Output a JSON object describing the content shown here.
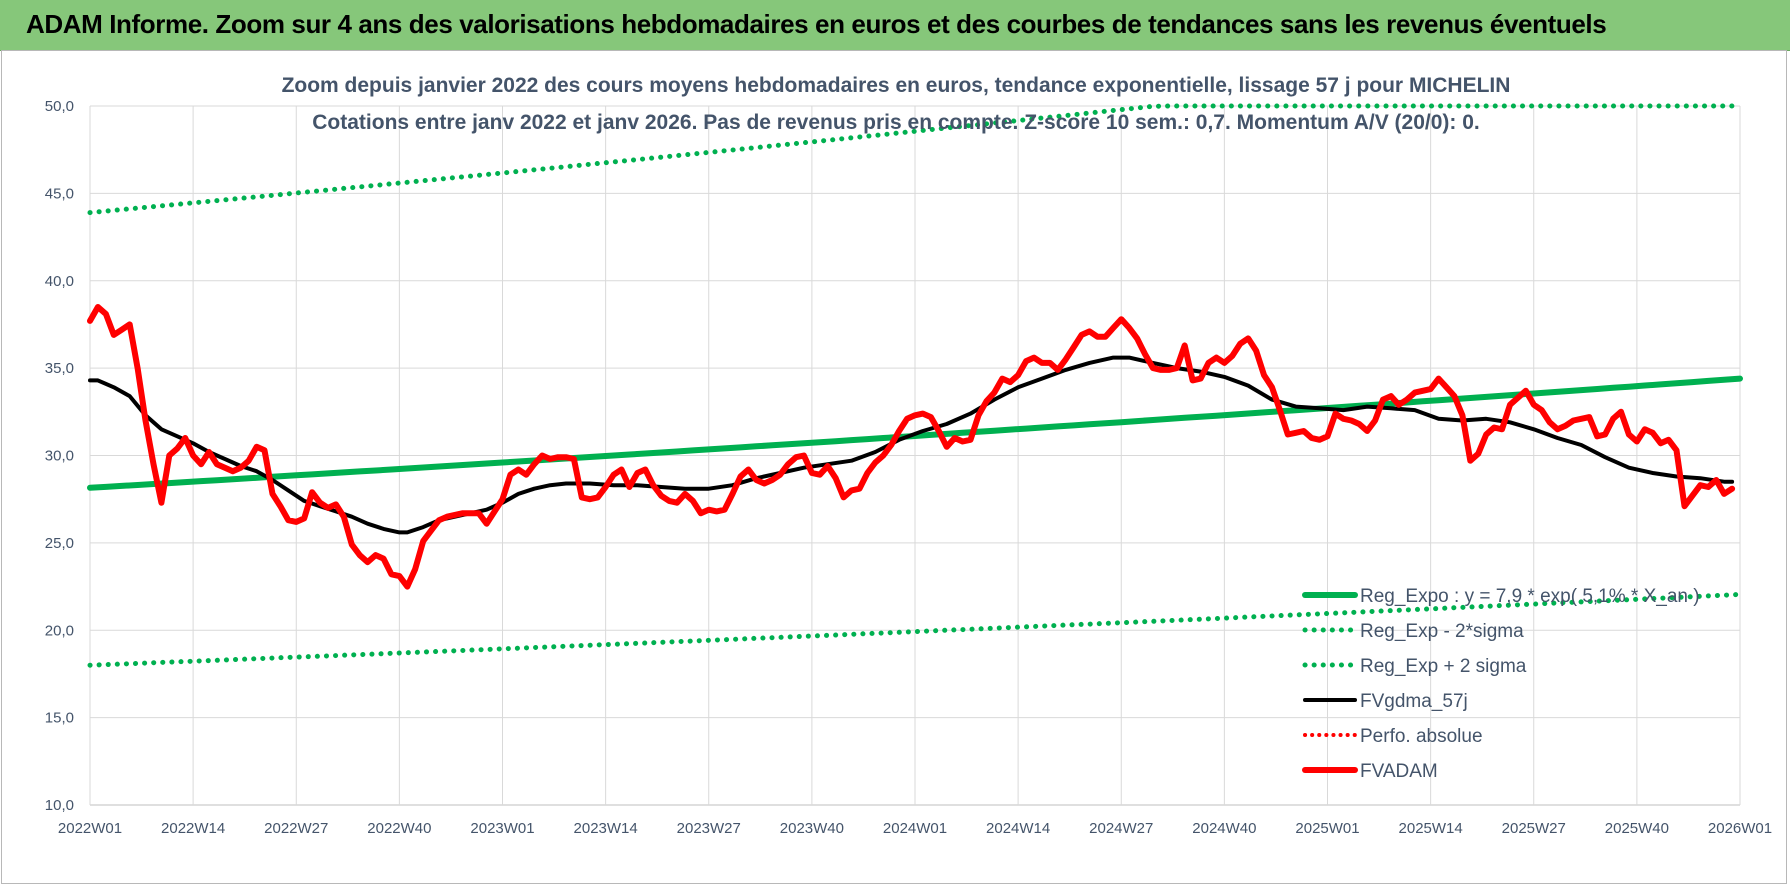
{
  "banner_title": "ADAM Informe. Zoom sur 4 ans des valorisations hebdomadaires en euros et des courbes de tendances sans les revenus éventuels",
  "chart_data": {
    "type": "line",
    "title": "Zoom depuis janvier 2022 des cours moyens hebdomadaires en euros, tendance exponentielle, lissage 57 j pour MICHELIN",
    "subtitle": "Cotations entre janv 2022 et janv 2026. Pas de revenus pris en compte. Z-score 10 sem.: 0,7. Momentum A/V (20/0): 0.",
    "xlabel": "",
    "ylabel": "",
    "ylim": [
      10,
      50
    ],
    "yticks": [
      "10,0",
      "15,0",
      "20,0",
      "25,0",
      "30,0",
      "35,0",
      "40,0",
      "45,0",
      "50,0"
    ],
    "xticks": [
      "2022W01",
      "2022W14",
      "2022W27",
      "2022W40",
      "2023W01",
      "2023W14",
      "2023W27",
      "2023W40",
      "2024W01",
      "2024W14",
      "2024W27",
      "2024W40",
      "2025W01",
      "2025W14",
      "2025W27",
      "2025W40",
      "2026W01"
    ],
    "grid": true,
    "legend_position": "bottom-right",
    "colors": {
      "green": "#00b050",
      "black": "#000000",
      "red": "#ff0000",
      "banner": "#86c77a",
      "text": "#44546a"
    },
    "series": [
      {
        "name": "Reg_Expo : y = 7,9 * exp( 5,1% * X_an )",
        "style": "solid-green",
        "x_range": [
          0,
          208
        ],
        "values": [
          28.15,
          34.4
        ]
      },
      {
        "name": "Reg_Exp - 2*sigma",
        "style": "dotted-green",
        "x_range": [
          0,
          208
        ],
        "values": [
          18.0,
          22.05
        ]
      },
      {
        "name": "Reg_Exp + 2 sigma",
        "style": "dotted-green",
        "x_range": [
          0,
          208
        ],
        "values": [
          43.9,
          53.7
        ]
      },
      {
        "name": "FVgdma_57j",
        "style": "solid-black",
        "points": [
          [
            0,
            34.3
          ],
          [
            1,
            34.3
          ],
          [
            3,
            33.9
          ],
          [
            5,
            33.4
          ],
          [
            7,
            32.3
          ],
          [
            9,
            31.5
          ],
          [
            11,
            31.1
          ],
          [
            13,
            30.7
          ],
          [
            15,
            30.2
          ],
          [
            17,
            29.8
          ],
          [
            19,
            29.4
          ],
          [
            21,
            29.1
          ],
          [
            23,
            28.6
          ],
          [
            25,
            28.0
          ],
          [
            27,
            27.4
          ],
          [
            29,
            27.1
          ],
          [
            31,
            26.8
          ],
          [
            33,
            26.5
          ],
          [
            35,
            26.1
          ],
          [
            37,
            25.8
          ],
          [
            39,
            25.6
          ],
          [
            40,
            25.6
          ],
          [
            42,
            25.9
          ],
          [
            44,
            26.3
          ],
          [
            46,
            26.5
          ],
          [
            48,
            26.7
          ],
          [
            50,
            26.9
          ],
          [
            52,
            27.3
          ],
          [
            54,
            27.8
          ],
          [
            56,
            28.1
          ],
          [
            58,
            28.3
          ],
          [
            60,
            28.4
          ],
          [
            63,
            28.4
          ],
          [
            66,
            28.3
          ],
          [
            69,
            28.3
          ],
          [
            72,
            28.2
          ],
          [
            75,
            28.1
          ],
          [
            78,
            28.1
          ],
          [
            81,
            28.3
          ],
          [
            84,
            28.7
          ],
          [
            87,
            29.0
          ],
          [
            90,
            29.3
          ],
          [
            93,
            29.5
          ],
          [
            96,
            29.7
          ],
          [
            99,
            30.2
          ],
          [
            102,
            30.9
          ],
          [
            105,
            31.4
          ],
          [
            108,
            31.8
          ],
          [
            111,
            32.4
          ],
          [
            114,
            33.2
          ],
          [
            117,
            33.9
          ],
          [
            120,
            34.4
          ],
          [
            123,
            34.9
          ],
          [
            126,
            35.3
          ],
          [
            129,
            35.6
          ],
          [
            131,
            35.6
          ],
          [
            134,
            35.3
          ],
          [
            137,
            35.0
          ],
          [
            140,
            34.8
          ],
          [
            143,
            34.5
          ],
          [
            146,
            34.0
          ],
          [
            149,
            33.2
          ],
          [
            152,
            32.8
          ],
          [
            155,
            32.7
          ],
          [
            158,
            32.6
          ],
          [
            161,
            32.8
          ],
          [
            164,
            32.7
          ],
          [
            167,
            32.6
          ],
          [
            170,
            32.1
          ],
          [
            173,
            32.0
          ],
          [
            176,
            32.1
          ],
          [
            179,
            31.9
          ],
          [
            182,
            31.5
          ],
          [
            185,
            31.0
          ],
          [
            188,
            30.6
          ],
          [
            191,
            29.9
          ],
          [
            194,
            29.3
          ],
          [
            197,
            29.0
          ],
          [
            200,
            28.8
          ],
          [
            203,
            28.7
          ],
          [
            206,
            28.5
          ],
          [
            207,
            28.5
          ]
        ]
      },
      {
        "name": "Perfo. absolue",
        "style": "dotted-red",
        "points": []
      },
      {
        "name": "FVADAM",
        "style": "solid-red",
        "points": [
          [
            0,
            37.7
          ],
          [
            1,
            38.5
          ],
          [
            2,
            38.1
          ],
          [
            3,
            36.9
          ],
          [
            4,
            37.2
          ],
          [
            5,
            37.5
          ],
          [
            6,
            35.0
          ],
          [
            7,
            32.0
          ],
          [
            8,
            29.5
          ],
          [
            9,
            27.3
          ],
          [
            10,
            30.0
          ],
          [
            11,
            30.4
          ],
          [
            12,
            31.0
          ],
          [
            13,
            30.0
          ],
          [
            14,
            29.5
          ],
          [
            15,
            30.2
          ],
          [
            16,
            29.5
          ],
          [
            17,
            29.3
          ],
          [
            18,
            29.1
          ],
          [
            19,
            29.3
          ],
          [
            20,
            29.7
          ],
          [
            21,
            30.5
          ],
          [
            22,
            30.3
          ],
          [
            23,
            27.8
          ],
          [
            24,
            27.1
          ],
          [
            25,
            26.3
          ],
          [
            26,
            26.2
          ],
          [
            27,
            26.4
          ],
          [
            28,
            27.9
          ],
          [
            29,
            27.3
          ],
          [
            30,
            27.0
          ],
          [
            31,
            27.2
          ],
          [
            32,
            26.5
          ],
          [
            33,
            24.9
          ],
          [
            34,
            24.3
          ],
          [
            35,
            23.9
          ],
          [
            36,
            24.3
          ],
          [
            37,
            24.1
          ],
          [
            38,
            23.2
          ],
          [
            39,
            23.1
          ],
          [
            40,
            22.5
          ],
          [
            41,
            23.5
          ],
          [
            42,
            25.1
          ],
          [
            43,
            25.7
          ],
          [
            44,
            26.3
          ],
          [
            45,
            26.5
          ],
          [
            46,
            26.6
          ],
          [
            47,
            26.7
          ],
          [
            48,
            26.7
          ],
          [
            49,
            26.7
          ],
          [
            50,
            26.1
          ],
          [
            51,
            26.8
          ],
          [
            52,
            27.5
          ],
          [
            53,
            28.9
          ],
          [
            54,
            29.2
          ],
          [
            55,
            28.9
          ],
          [
            56,
            29.5
          ],
          [
            57,
            30.0
          ],
          [
            58,
            29.8
          ],
          [
            59,
            29.9
          ],
          [
            60,
            29.9
          ],
          [
            61,
            29.8
          ],
          [
            62,
            27.6
          ],
          [
            63,
            27.5
          ],
          [
            64,
            27.6
          ],
          [
            65,
            28.2
          ],
          [
            66,
            28.9
          ],
          [
            67,
            29.2
          ],
          [
            68,
            28.2
          ],
          [
            69,
            29.0
          ],
          [
            70,
            29.2
          ],
          [
            71,
            28.3
          ],
          [
            72,
            27.7
          ],
          [
            73,
            27.4
          ],
          [
            74,
            27.3
          ],
          [
            75,
            27.8
          ],
          [
            76,
            27.4
          ],
          [
            77,
            26.7
          ],
          [
            78,
            26.9
          ],
          [
            79,
            26.8
          ],
          [
            80,
            26.9
          ],
          [
            81,
            27.8
          ],
          [
            82,
            28.8
          ],
          [
            83,
            29.2
          ],
          [
            84,
            28.6
          ],
          [
            85,
            28.4
          ],
          [
            86,
            28.6
          ],
          [
            87,
            28.9
          ],
          [
            88,
            29.5
          ],
          [
            89,
            29.9
          ],
          [
            90,
            30.0
          ],
          [
            91,
            29.0
          ],
          [
            92,
            28.9
          ],
          [
            93,
            29.4
          ],
          [
            94,
            28.7
          ],
          [
            95,
            27.6
          ],
          [
            96,
            28.0
          ],
          [
            97,
            28.1
          ],
          [
            98,
            29.0
          ],
          [
            99,
            29.6
          ],
          [
            100,
            30.0
          ],
          [
            101,
            30.6
          ],
          [
            102,
            31.4
          ],
          [
            103,
            32.1
          ],
          [
            104,
            32.3
          ],
          [
            105,
            32.4
          ],
          [
            106,
            32.2
          ],
          [
            107,
            31.4
          ],
          [
            108,
            30.5
          ],
          [
            109,
            31.0
          ],
          [
            110,
            30.8
          ],
          [
            111,
            30.9
          ],
          [
            112,
            32.3
          ],
          [
            113,
            33.1
          ],
          [
            114,
            33.6
          ],
          [
            115,
            34.4
          ],
          [
            116,
            34.2
          ],
          [
            117,
            34.6
          ],
          [
            118,
            35.4
          ],
          [
            119,
            35.6
          ],
          [
            120,
            35.3
          ],
          [
            121,
            35.3
          ],
          [
            122,
            34.9
          ],
          [
            123,
            35.5
          ],
          [
            124,
            36.2
          ],
          [
            125,
            36.9
          ],
          [
            126,
            37.1
          ],
          [
            127,
            36.8
          ],
          [
            128,
            36.8
          ],
          [
            129,
            37.3
          ],
          [
            130,
            37.8
          ],
          [
            131,
            37.3
          ],
          [
            132,
            36.7
          ],
          [
            133,
            35.8
          ],
          [
            134,
            35.0
          ],
          [
            135,
            34.9
          ],
          [
            136,
            34.9
          ],
          [
            137,
            35.0
          ],
          [
            138,
            36.3
          ],
          [
            139,
            34.3
          ],
          [
            140,
            34.4
          ],
          [
            141,
            35.3
          ],
          [
            142,
            35.6
          ],
          [
            143,
            35.3
          ],
          [
            144,
            35.7
          ],
          [
            145,
            36.4
          ],
          [
            146,
            36.7
          ],
          [
            147,
            36.0
          ],
          [
            148,
            34.6
          ],
          [
            149,
            33.9
          ],
          [
            150,
            32.6
          ],
          [
            151,
            31.2
          ],
          [
            152,
            31.3
          ],
          [
            153,
            31.4
          ],
          [
            154,
            31.0
          ],
          [
            155,
            30.9
          ],
          [
            156,
            31.1
          ],
          [
            157,
            32.4
          ],
          [
            158,
            32.1
          ],
          [
            159,
            32.0
          ],
          [
            160,
            31.8
          ],
          [
            161,
            31.4
          ],
          [
            162,
            32.0
          ],
          [
            163,
            33.2
          ],
          [
            164,
            33.4
          ],
          [
            165,
            32.9
          ],
          [
            166,
            33.2
          ],
          [
            167,
            33.6
          ],
          [
            168,
            33.7
          ],
          [
            169,
            33.8
          ],
          [
            170,
            34.4
          ],
          [
            171,
            33.9
          ],
          [
            172,
            33.4
          ],
          [
            173,
            32.3
          ],
          [
            174,
            29.7
          ],
          [
            175,
            30.1
          ],
          [
            176,
            31.2
          ],
          [
            177,
            31.6
          ],
          [
            178,
            31.5
          ],
          [
            179,
            32.9
          ],
          [
            180,
            33.3
          ],
          [
            181,
            33.7
          ],
          [
            182,
            32.9
          ],
          [
            183,
            32.6
          ],
          [
            184,
            31.9
          ],
          [
            185,
            31.5
          ],
          [
            186,
            31.7
          ],
          [
            187,
            32.0
          ],
          [
            188,
            32.1
          ],
          [
            189,
            32.2
          ],
          [
            190,
            31.1
          ],
          [
            191,
            31.2
          ],
          [
            192,
            32.1
          ],
          [
            193,
            32.5
          ],
          [
            194,
            31.2
          ],
          [
            195,
            30.8
          ],
          [
            196,
            31.5
          ],
          [
            197,
            31.3
          ],
          [
            198,
            30.7
          ],
          [
            199,
            30.9
          ],
          [
            200,
            30.3
          ],
          [
            201,
            27.1
          ],
          [
            202,
            27.7
          ],
          [
            203,
            28.3
          ],
          [
            204,
            28.2
          ],
          [
            205,
            28.6
          ],
          [
            206,
            27.8
          ],
          [
            207,
            28.1
          ]
        ]
      }
    ]
  }
}
